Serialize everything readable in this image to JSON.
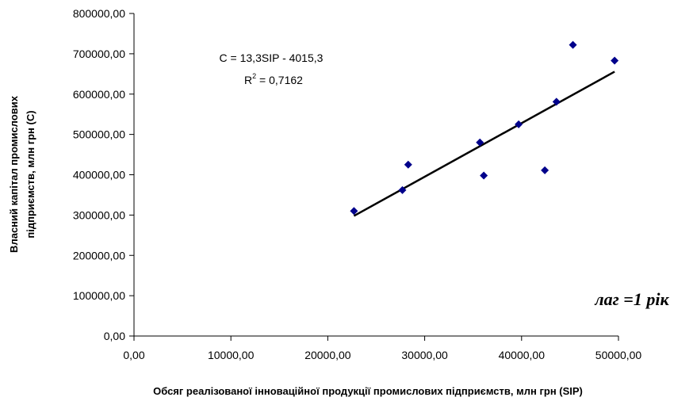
{
  "chart_data": {
    "type": "scatter",
    "title": "",
    "xlabel": "Обсяг реалізованої інноваційної продукції промислових підприємств, млн грн (SIP)",
    "ylabel_lines": [
      "Власний капітал промислових",
      "підприємств, млн грн (С)"
    ],
    "xlim": [
      0,
      50000
    ],
    "ylim": [
      0,
      800000
    ],
    "x_ticks": [
      "0,00",
      "10000,00",
      "20000,00",
      "30000,00",
      "40000,00",
      "50000,00"
    ],
    "y_ticks": [
      "0,00",
      "100000,00",
      "200000,00",
      "300000,00",
      "400000,00",
      "500000,00",
      "600000,00",
      "700000,00",
      "800000,00"
    ],
    "x_tick_values": [
      0,
      10000,
      20000,
      30000,
      40000,
      50000
    ],
    "y_tick_values": [
      0,
      100000,
      200000,
      300000,
      400000,
      500000,
      600000,
      700000,
      800000
    ],
    "points": [
      {
        "x": 22700,
        "y": 310000
      },
      {
        "x": 27700,
        "y": 362000
      },
      {
        "x": 28300,
        "y": 425000
      },
      {
        "x": 35700,
        "y": 480000
      },
      {
        "x": 36100,
        "y": 398000
      },
      {
        "x": 39700,
        "y": 525000
      },
      {
        "x": 42400,
        "y": 411000
      },
      {
        "x": 43600,
        "y": 581000
      },
      {
        "x": 45300,
        "y": 722000
      },
      {
        "x": 49600,
        "y": 683000
      }
    ],
    "point_color": "#00008B",
    "trendline": {
      "x": [
        22700,
        49600
      ],
      "slope": 13.3,
      "intercept": -4015.3,
      "color": "#000000"
    },
    "equation": "C = 13,3SIP - 4015,3",
    "r2_prefix": "R",
    "r2_sup": "2",
    "r2_value": " = 0,7162",
    "annotation": "лаг =1 рік"
  }
}
